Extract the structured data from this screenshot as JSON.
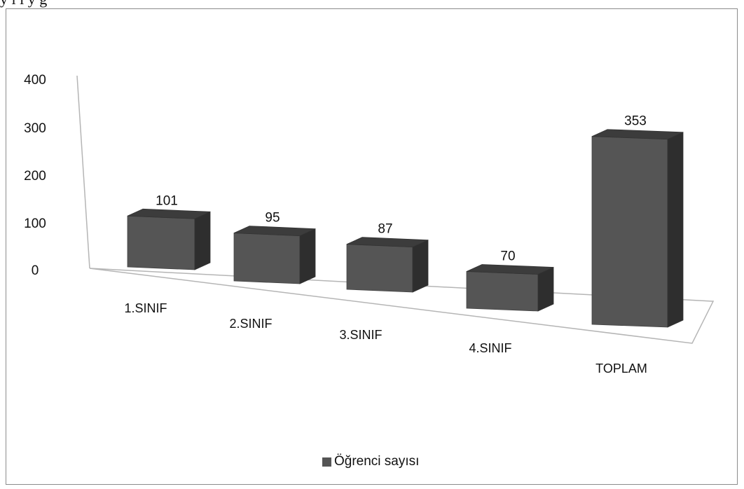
{
  "top_caption": "y ı ı y g",
  "chart_data": {
    "type": "bar",
    "categories": [
      "1.SINIF",
      "2.SINIF",
      "3.SINIF",
      "4.SINIF",
      "TOPLAM"
    ],
    "series": [
      {
        "name": "Öğrenci sayısı",
        "values": [
          101,
          95,
          87,
          70,
          353
        ]
      }
    ],
    "y_ticks": [
      "0",
      "100",
      "200",
      "300",
      "400"
    ],
    "ylim": [
      0,
      400
    ],
    "legend_position": "bottom",
    "grid": false,
    "bar_color": "#555555",
    "bar_top_color": "#3c3c3c",
    "bar_side_color": "#2e2e2e"
  }
}
